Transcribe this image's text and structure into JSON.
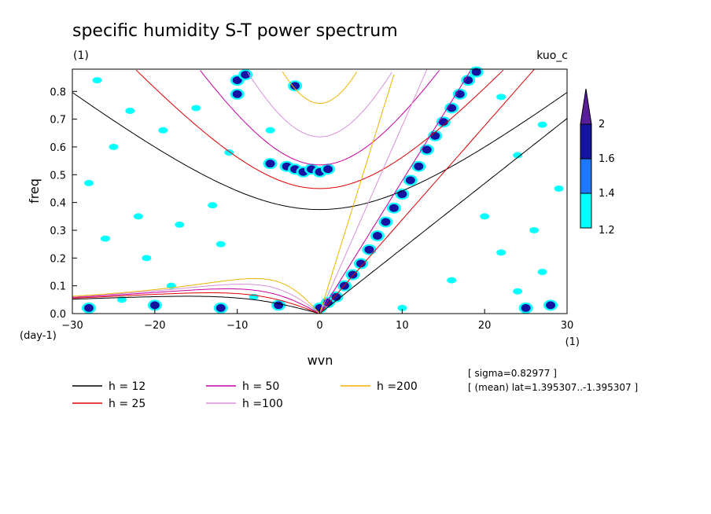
{
  "chart_data": {
    "type": "heatmap",
    "title": "specific humidity S-T power spectrum",
    "subtitle_left": "(1)",
    "subtitle_right": "kuo_c",
    "xlabel": "wvn",
    "ylabel": "freq",
    "x_units": "(1)",
    "y_units": "(day-1)",
    "xlim": [
      -30,
      30
    ],
    "ylim": [
      0,
      0.88
    ],
    "x_ticks": [
      -30,
      -20,
      -10,
      0,
      10,
      20,
      30
    ],
    "y_ticks": [
      0.0,
      0.1,
      0.2,
      0.3,
      0.4,
      0.5,
      0.6,
      0.7,
      0.8
    ],
    "colorbar": {
      "levels": [
        1.2,
        1.4,
        1.6,
        2
      ],
      "colors": [
        "#00ffff",
        "#1e78ff",
        "#1414a0",
        "#5a1e9b"
      ]
    },
    "shaded_regions": [
      {
        "level": 1.6,
        "points": [
          [
            0,
            0.02
          ],
          [
            1,
            0.04
          ],
          [
            2,
            0.06
          ],
          [
            3,
            0.1
          ],
          [
            4,
            0.14
          ],
          [
            5,
            0.18
          ],
          [
            6,
            0.23
          ],
          [
            7,
            0.28
          ],
          [
            8,
            0.33
          ],
          [
            9,
            0.38
          ],
          [
            10,
            0.43
          ],
          [
            11,
            0.48
          ],
          [
            12,
            0.53
          ],
          [
            13,
            0.59
          ],
          [
            14,
            0.64
          ],
          [
            15,
            0.69
          ],
          [
            16,
            0.74
          ],
          [
            17,
            0.79
          ],
          [
            18,
            0.84
          ],
          [
            19,
            0.87
          ]
        ]
      },
      {
        "level": 1.6,
        "points": [
          [
            -4,
            0.53
          ],
          [
            -3,
            0.52
          ],
          [
            -2,
            0.51
          ],
          [
            -1,
            0.52
          ],
          [
            0,
            0.51
          ],
          [
            1,
            0.52
          ],
          [
            -6,
            0.54
          ]
        ]
      },
      {
        "level": 1.6,
        "points": [
          [
            -10,
            0.84
          ],
          [
            -9,
            0.86
          ],
          [
            -3,
            0.82
          ],
          [
            -10,
            0.79
          ],
          [
            -28,
            0.02
          ],
          [
            -20,
            0.03
          ],
          [
            -12,
            0.02
          ],
          [
            -5,
            0.03
          ],
          [
            25,
            0.02
          ],
          [
            28,
            0.03
          ]
        ]
      },
      {
        "level": 1.2,
        "points": [
          [
            -27,
            0.84
          ],
          [
            -23,
            0.73
          ],
          [
            -19,
            0.66
          ],
          [
            -15,
            0.74
          ],
          [
            -25,
            0.6
          ],
          [
            -28,
            0.47
          ],
          [
            -22,
            0.35
          ],
          [
            -17,
            0.32
          ],
          [
            -26,
            0.27
          ],
          [
            -21,
            0.2
          ],
          [
            -12,
            0.25
          ],
          [
            -18,
            0.1
          ],
          [
            -24,
            0.05
          ],
          [
            -8,
            0.06
          ],
          [
            -13,
            0.39
          ],
          [
            -6,
            0.66
          ],
          [
            -11,
            0.58
          ],
          [
            22,
            0.78
          ],
          [
            27,
            0.68
          ],
          [
            24,
            0.57
          ],
          [
            20,
            0.35
          ],
          [
            26,
            0.3
          ],
          [
            22,
            0.22
          ],
          [
            27,
            0.15
          ],
          [
            16,
            0.12
          ],
          [
            24,
            0.08
          ],
          [
            10,
            0.02
          ],
          [
            29,
            0.45
          ]
        ]
      }
    ],
    "series": [
      {
        "name": "h = 12",
        "color": "#000000",
        "type": "dispersion",
        "h": 12
      },
      {
        "name": "h = 25",
        "color": "#e00000",
        "type": "dispersion",
        "h": 25
      },
      {
        "name": "h = 50",
        "color": "#c800a0",
        "type": "dispersion",
        "h": 50
      },
      {
        "name": "h =100",
        "color": "#d890d8",
        "type": "dispersion",
        "h": 100
      },
      {
        "name": "h =200",
        "color": "#f0b400",
        "type": "dispersion",
        "h": 200
      }
    ],
    "annotations": [
      "[ sigma=0.82977 ]",
      "[ (mean) lat=1.395307..-1.395307 ]"
    ]
  }
}
